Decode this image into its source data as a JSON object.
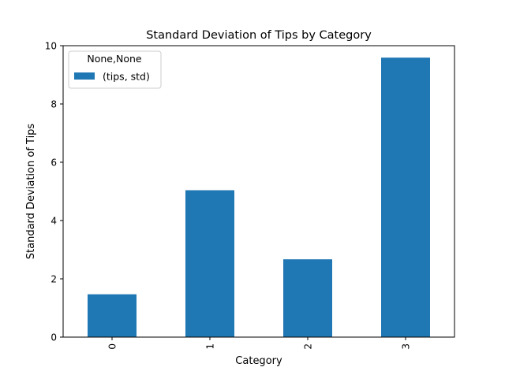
{
  "chart_data": {
    "type": "bar",
    "title": "Standard Deviation of Tips by Category",
    "xlabel": "Category",
    "ylabel": "Standard Deviation of Tips",
    "categories": [
      "0",
      "1",
      "2",
      "3"
    ],
    "series": [
      {
        "name": "(tips, std)",
        "values": [
          1.47,
          5.04,
          2.67,
          9.59
        ],
        "color": "#1f77b4"
      }
    ],
    "ylim": [
      0,
      10
    ],
    "yticks": [
      0,
      2,
      4,
      6,
      8,
      10
    ],
    "legend": {
      "title": "None,None",
      "placement": "top-left"
    },
    "grid": false
  }
}
